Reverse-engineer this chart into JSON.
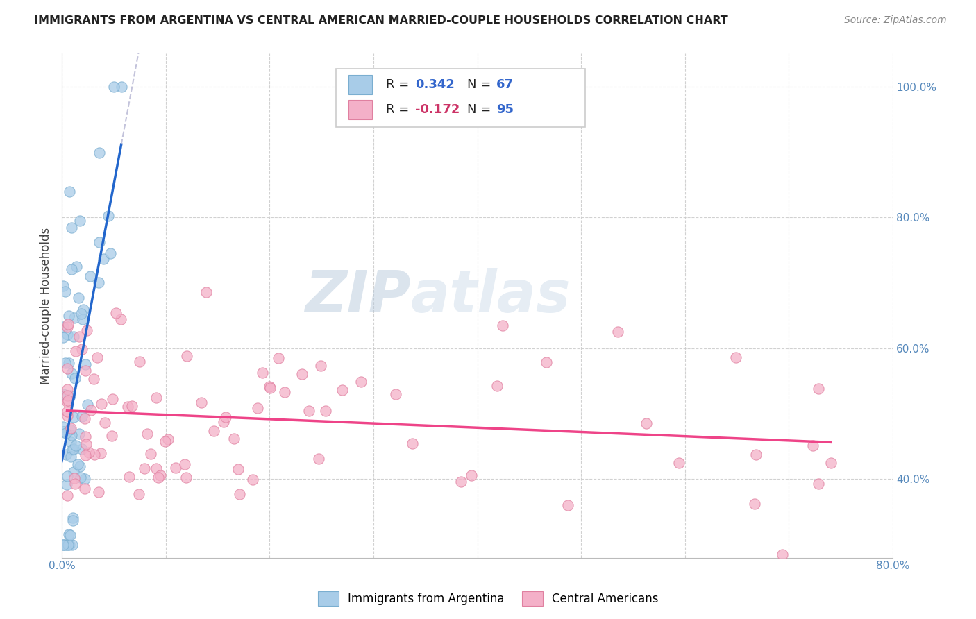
{
  "title": "IMMIGRANTS FROM ARGENTINA VS CENTRAL AMERICAN MARRIED-COUPLE HOUSEHOLDS CORRELATION CHART",
  "source": "Source: ZipAtlas.com",
  "ylabel": "Married-couple Households",
  "xlim": [
    0.0,
    0.8
  ],
  "ylim": [
    0.28,
    1.05
  ],
  "xticks": [
    0.0,
    0.1,
    0.2,
    0.3,
    0.4,
    0.5,
    0.6,
    0.7,
    0.8
  ],
  "xticklabels": [
    "0.0%",
    "",
    "",
    "",
    "",
    "",
    "",
    "",
    "80.0%"
  ],
  "ytick_positions": [
    0.4,
    0.6,
    0.8,
    1.0
  ],
  "yticklabels": [
    "40.0%",
    "60.0%",
    "80.0%",
    "100.0%"
  ],
  "argentina_color": "#a8cce8",
  "argentina_edge": "#7aaed0",
  "central_color": "#f4b0c8",
  "central_edge": "#e080a0",
  "trend_argentina_color": "#2266cc",
  "trend_central_color": "#ee4488",
  "R_argentina": 0.342,
  "N_argentina": 67,
  "R_central": -0.172,
  "N_central": 95,
  "legend_label_argentina": "Immigrants from Argentina",
  "legend_label_central": "Central Americans",
  "watermark": "ZIPatlas"
}
